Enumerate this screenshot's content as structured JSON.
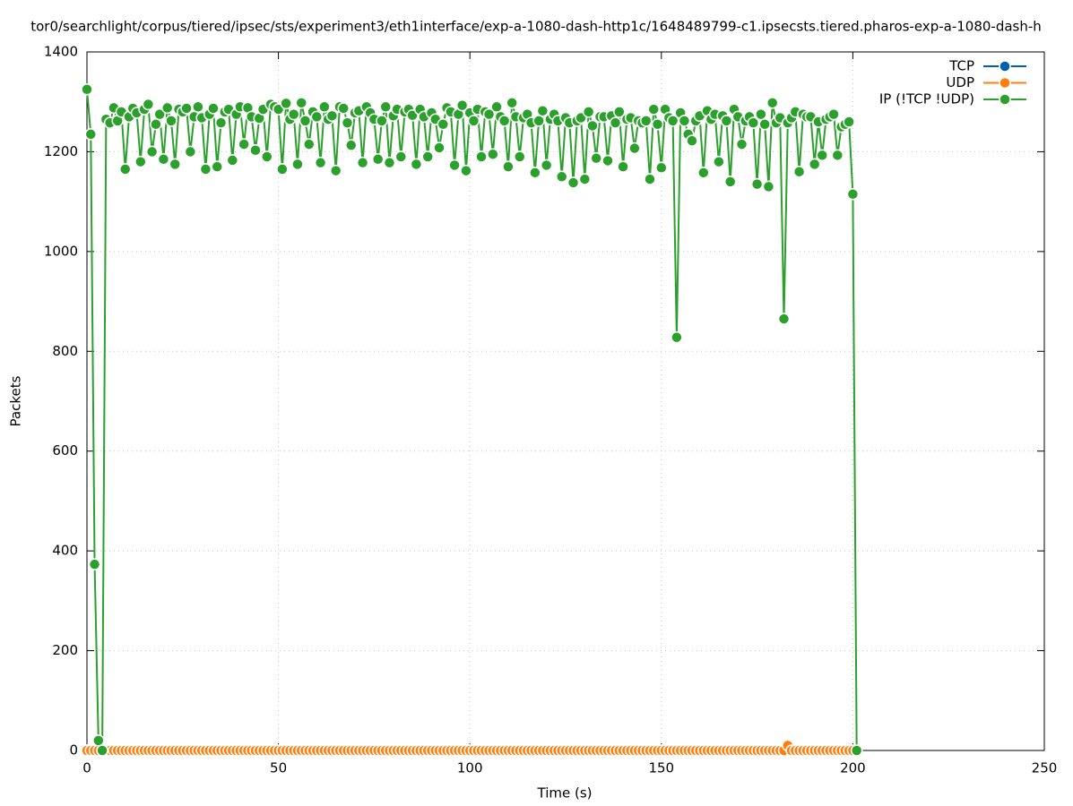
{
  "chart_data": {
    "type": "line",
    "title": "tor0/searchlight/corpus/tiered/ipsec/sts/experiment3/eth1interface/exp-a-1080-dash-http1c/1648489799-c1.ipsecsts.tiered.pharos-exp-a-1080-dash-h",
    "x_label": "Time (s)",
    "y_label": "Packets",
    "xlim": [
      0,
      250
    ],
    "xticks": [
      0,
      50,
      100,
      150,
      200,
      250
    ],
    "ylim": [
      0,
      1400
    ],
    "yticks": [
      0,
      200,
      400,
      600,
      800,
      1000,
      1200,
      1400
    ],
    "grid": true,
    "legend": "top-right",
    "x": [
      0,
      1,
      2,
      3,
      4,
      5,
      6,
      7,
      8,
      9,
      10,
      11,
      12,
      13,
      14,
      15,
      16,
      17,
      18,
      19,
      20,
      21,
      22,
      23,
      24,
      25,
      26,
      27,
      28,
      29,
      30,
      31,
      32,
      33,
      34,
      35,
      36,
      37,
      38,
      39,
      40,
      41,
      42,
      43,
      44,
      45,
      46,
      47,
      48,
      49,
      50,
      51,
      52,
      53,
      54,
      55,
      56,
      57,
      58,
      59,
      60,
      61,
      62,
      63,
      64,
      65,
      66,
      67,
      68,
      69,
      70,
      71,
      72,
      73,
      74,
      75,
      76,
      77,
      78,
      79,
      80,
      81,
      82,
      83,
      84,
      85,
      86,
      87,
      88,
      89,
      90,
      91,
      92,
      93,
      94,
      95,
      96,
      97,
      98,
      99,
      100,
      101,
      102,
      103,
      104,
      105,
      106,
      107,
      108,
      109,
      110,
      111,
      112,
      113,
      114,
      115,
      116,
      117,
      118,
      119,
      120,
      121,
      122,
      123,
      124,
      125,
      126,
      127,
      128,
      129,
      130,
      131,
      132,
      133,
      134,
      135,
      136,
      137,
      138,
      139,
      140,
      141,
      142,
      143,
      144,
      145,
      146,
      147,
      148,
      149,
      150,
      151,
      152,
      153,
      154,
      155,
      156,
      157,
      158,
      159,
      160,
      161,
      162,
      163,
      164,
      165,
      166,
      167,
      168,
      169,
      170,
      171,
      172,
      173,
      174,
      175,
      176,
      177,
      178,
      179,
      180,
      181,
      182,
      183,
      184,
      185,
      186,
      187,
      188,
      189,
      190,
      191,
      192,
      193,
      194,
      195,
      196,
      197,
      198,
      199,
      200,
      201
    ],
    "series": [
      {
        "name": "TCP",
        "color": "#0060ad",
        "values": [
          0,
          0,
          0,
          0,
          0,
          0,
          0,
          0,
          0,
          0,
          0,
          0,
          0,
          0,
          0,
          0,
          0,
          0,
          0,
          0,
          0,
          0,
          0,
          0,
          0,
          0,
          0,
          0,
          0,
          0,
          0,
          0,
          0,
          0,
          0,
          0,
          0,
          0,
          0,
          0,
          0,
          0,
          0,
          0,
          0,
          0,
          0,
          0,
          0,
          0,
          0,
          0,
          0,
          0,
          0,
          0,
          0,
          0,
          0,
          0,
          0,
          0,
          0,
          0,
          0,
          0,
          0,
          0,
          0,
          0,
          0,
          0,
          0,
          0,
          0,
          0,
          0,
          0,
          0,
          0,
          0,
          0,
          0,
          0,
          0,
          0,
          0,
          0,
          0,
          0,
          0,
          0,
          0,
          0,
          0,
          0,
          0,
          0,
          0,
          0,
          0,
          0,
          0,
          0,
          0,
          0,
          0,
          0,
          0,
          0,
          0,
          0,
          0,
          0,
          0,
          0,
          0,
          0,
          0,
          0,
          0,
          0,
          0,
          0,
          0,
          0,
          0,
          0,
          0,
          0,
          0,
          0,
          0,
          0,
          0,
          0,
          0,
          0,
          0,
          0,
          0,
          0,
          0,
          0,
          0,
          0,
          0,
          0,
          0,
          0,
          0,
          0,
          0,
          0,
          0,
          0,
          0,
          0,
          0,
          0,
          0,
          0,
          0,
          0,
          0,
          0,
          0,
          0,
          0,
          0,
          0,
          0,
          0,
          0,
          0,
          0,
          0,
          0,
          0,
          0,
          0,
          0,
          0,
          0,
          0,
          0,
          0,
          0,
          0,
          0,
          0,
          0,
          0,
          0,
          0,
          0,
          0,
          0,
          0,
          0,
          0,
          0
        ]
      },
      {
        "name": "UDP",
        "color": "#ff7f0e",
        "values": [
          0,
          0,
          0,
          0,
          0,
          0,
          0,
          0,
          0,
          0,
          0,
          0,
          0,
          0,
          0,
          0,
          0,
          0,
          0,
          0,
          0,
          0,
          0,
          0,
          0,
          0,
          0,
          0,
          0,
          0,
          0,
          0,
          0,
          0,
          0,
          0,
          0,
          0,
          0,
          0,
          0,
          0,
          0,
          0,
          0,
          0,
          0,
          0,
          0,
          0,
          0,
          0,
          0,
          0,
          0,
          0,
          0,
          0,
          0,
          0,
          0,
          0,
          0,
          0,
          0,
          0,
          0,
          0,
          0,
          0,
          0,
          0,
          0,
          0,
          0,
          0,
          0,
          0,
          0,
          0,
          0,
          0,
          0,
          0,
          0,
          0,
          0,
          0,
          0,
          0,
          0,
          0,
          0,
          0,
          0,
          0,
          0,
          0,
          0,
          0,
          0,
          0,
          0,
          0,
          0,
          0,
          0,
          0,
          0,
          0,
          0,
          0,
          0,
          0,
          0,
          0,
          0,
          0,
          0,
          0,
          0,
          0,
          0,
          0,
          0,
          0,
          0,
          0,
          0,
          0,
          0,
          0,
          0,
          0,
          0,
          0,
          0,
          0,
          0,
          0,
          0,
          0,
          0,
          0,
          0,
          0,
          0,
          0,
          0,
          0,
          0,
          0,
          0,
          0,
          0,
          0,
          0,
          0,
          0,
          0,
          0,
          0,
          0,
          0,
          0,
          0,
          0,
          0,
          0,
          0,
          0,
          0,
          0,
          0,
          0,
          0,
          0,
          0,
          0,
          0,
          0,
          0,
          0,
          10,
          0,
          0,
          0,
          0,
          0,
          0,
          0,
          0,
          0,
          0,
          0,
          0,
          0,
          0,
          0,
          0,
          0,
          0
        ]
      },
      {
        "name": "IP (!TCP  !UDP)",
        "color": "#2ca02c",
        "values": [
          1325,
          1235,
          373,
          20,
          0,
          1265,
          1258,
          1288,
          1262,
          1280,
          1165,
          1270,
          1287,
          1278,
          1180,
          1285,
          1295,
          1200,
          1255,
          1275,
          1185,
          1288,
          1262,
          1175,
          1285,
          1280,
          1287,
          1200,
          1270,
          1290,
          1268,
          1165,
          1275,
          1287,
          1170,
          1258,
          1280,
          1285,
          1183,
          1275,
          1290,
          1215,
          1288,
          1270,
          1203,
          1267,
          1285,
          1190,
          1295,
          1290,
          1285,
          1165,
          1297,
          1265,
          1275,
          1175,
          1298,
          1262,
          1215,
          1280,
          1270,
          1178,
          1290,
          1265,
          1272,
          1162,
          1290,
          1287,
          1258,
          1213,
          1278,
          1282,
          1178,
          1290,
          1278,
          1265,
          1185,
          1262,
          1290,
          1178,
          1272,
          1285,
          1190,
          1280,
          1285,
          1273,
          1175,
          1285,
          1270,
          1190,
          1278,
          1265,
          1208,
          1255,
          1288,
          1280,
          1173,
          1275,
          1293,
          1162,
          1278,
          1262,
          1285,
          1190,
          1280,
          1275,
          1195,
          1290,
          1270,
          1262,
          1170,
          1298,
          1270,
          1190,
          1268,
          1275,
          1258,
          1158,
          1262,
          1282,
          1173,
          1265,
          1275,
          1262,
          1150,
          1268,
          1258,
          1138,
          1262,
          1268,
          1145,
          1280,
          1252,
          1187,
          1270,
          1270,
          1182,
          1272,
          1258,
          1280,
          1170,
          1265,
          1268,
          1207,
          1262,
          1258,
          1262,
          1145,
          1285,
          1255,
          1168,
          1285,
          1268,
          1262,
          828,
          1278,
          1262,
          1235,
          1222,
          1262,
          1272,
          1158,
          1282,
          1265,
          1275,
          1180,
          1272,
          1262,
          1140,
          1285,
          1270,
          1215,
          1262,
          1270,
          1258,
          1135,
          1275,
          1255,
          1130,
          1298,
          1258,
          1268,
          865,
          1258,
          1268,
          1280,
          1160,
          1275,
          1270,
          1270,
          1175,
          1260,
          1193,
          1265,
          1270,
          1275,
          1193,
          1250,
          1255,
          1260,
          1115,
          0
        ]
      }
    ]
  }
}
